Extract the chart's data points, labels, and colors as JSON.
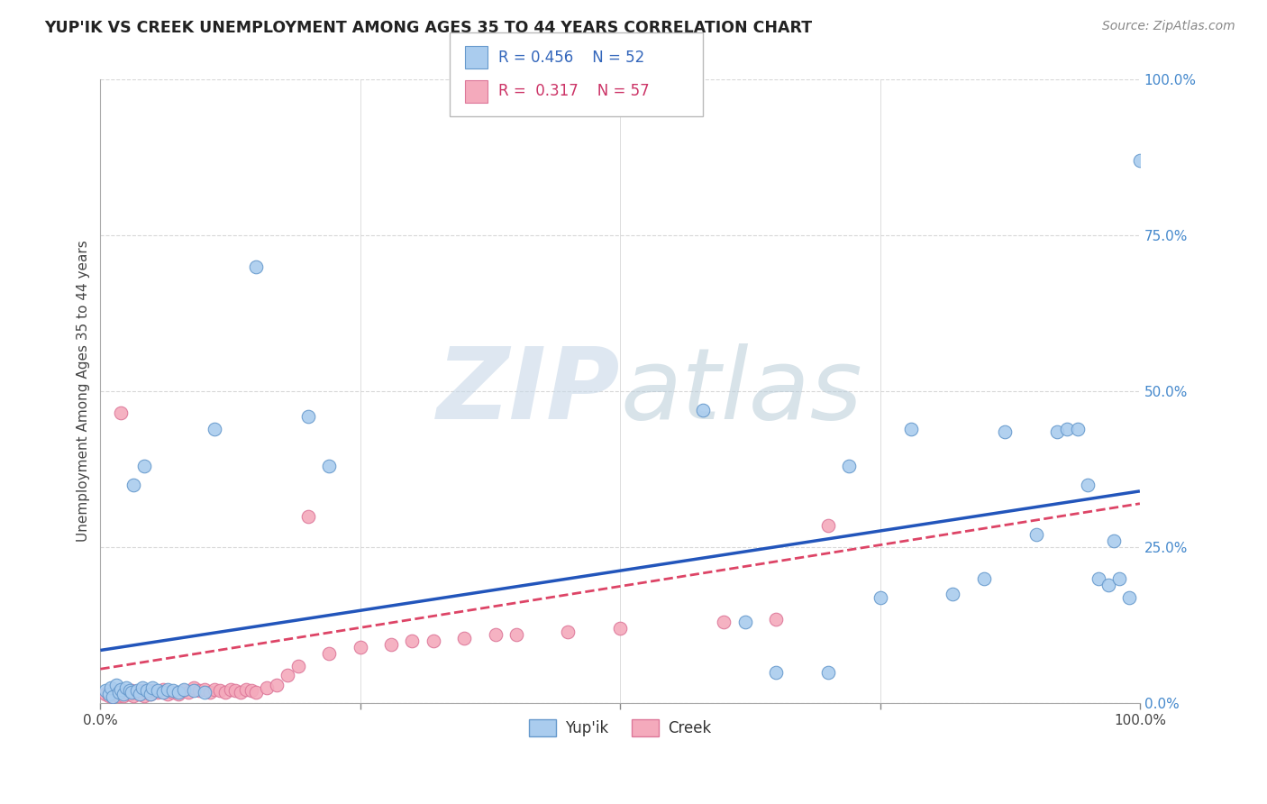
{
  "title": "YUP'IK VS CREEK UNEMPLOYMENT AMONG AGES 35 TO 44 YEARS CORRELATION CHART",
  "source": "Source: ZipAtlas.com",
  "ylabel": "Unemployment Among Ages 35 to 44 years",
  "xlim": [
    0,
    1
  ],
  "ylim": [
    0,
    1
  ],
  "ytick_labels": [
    "0.0%",
    "25.0%",
    "50.0%",
    "75.0%",
    "100.0%"
  ],
  "ytick_positions": [
    0.0,
    0.25,
    0.5,
    0.75,
    1.0
  ],
  "grid_color": "#d8d8d8",
  "background_color": "#ffffff",
  "yupik_color": "#aaccee",
  "creek_color": "#f4aabc",
  "yupik_edge": "#6699cc",
  "creek_edge": "#dd7799",
  "yupik_R": "0.456",
  "yupik_N": "52",
  "creek_R": "0.317",
  "creek_N": "57",
  "yupik_line_color": "#2255bb",
  "creek_line_color": "#dd4466",
  "yupik_scatter_x": [
    0.005,
    0.008,
    0.01,
    0.012,
    0.015,
    0.018,
    0.02,
    0.022,
    0.025,
    0.028,
    0.03,
    0.032,
    0.035,
    0.038,
    0.04,
    0.042,
    0.045,
    0.048,
    0.05,
    0.055,
    0.06,
    0.065,
    0.07,
    0.075,
    0.08,
    0.09,
    0.1,
    0.11,
    0.15,
    0.2,
    0.22,
    0.58,
    0.62,
    0.65,
    0.7,
    0.72,
    0.75,
    0.78,
    0.82,
    0.85,
    0.87,
    0.9,
    0.92,
    0.93,
    0.94,
    0.95,
    0.96,
    0.97,
    0.975,
    0.98,
    0.99,
    1.0
  ],
  "yupik_scatter_y": [
    0.02,
    0.015,
    0.025,
    0.01,
    0.03,
    0.018,
    0.022,
    0.015,
    0.025,
    0.02,
    0.018,
    0.35,
    0.02,
    0.015,
    0.025,
    0.38,
    0.02,
    0.015,
    0.025,
    0.02,
    0.018,
    0.022,
    0.02,
    0.018,
    0.022,
    0.02,
    0.018,
    0.44,
    0.7,
    0.46,
    0.38,
    0.47,
    0.13,
    0.05,
    0.05,
    0.38,
    0.17,
    0.44,
    0.175,
    0.2,
    0.435,
    0.27,
    0.435,
    0.44,
    0.44,
    0.35,
    0.2,
    0.19,
    0.26,
    0.2,
    0.17,
    0.87
  ],
  "creek_scatter_x": [
    0.005,
    0.008,
    0.01,
    0.012,
    0.015,
    0.018,
    0.02,
    0.022,
    0.025,
    0.028,
    0.03,
    0.032,
    0.035,
    0.038,
    0.04,
    0.042,
    0.045,
    0.048,
    0.05,
    0.055,
    0.06,
    0.065,
    0.07,
    0.075,
    0.08,
    0.085,
    0.09,
    0.095,
    0.1,
    0.105,
    0.11,
    0.115,
    0.12,
    0.125,
    0.13,
    0.135,
    0.14,
    0.145,
    0.15,
    0.16,
    0.17,
    0.18,
    0.19,
    0.2,
    0.22,
    0.25,
    0.28,
    0.3,
    0.32,
    0.35,
    0.38,
    0.4,
    0.45,
    0.5,
    0.6,
    0.65,
    0.7
  ],
  "creek_scatter_y": [
    0.015,
    0.012,
    0.02,
    0.01,
    0.015,
    0.012,
    0.465,
    0.012,
    0.018,
    0.015,
    0.02,
    0.012,
    0.018,
    0.015,
    0.02,
    0.012,
    0.018,
    0.015,
    0.02,
    0.018,
    0.022,
    0.015,
    0.018,
    0.015,
    0.02,
    0.018,
    0.025,
    0.02,
    0.022,
    0.018,
    0.022,
    0.02,
    0.018,
    0.022,
    0.02,
    0.018,
    0.022,
    0.02,
    0.018,
    0.025,
    0.03,
    0.045,
    0.06,
    0.3,
    0.08,
    0.09,
    0.095,
    0.1,
    0.1,
    0.105,
    0.11,
    0.11,
    0.115,
    0.12,
    0.13,
    0.135,
    0.285
  ],
  "yupik_trend_x0": 0.0,
  "yupik_trend_y0": 0.085,
  "yupik_trend_x1": 1.0,
  "yupik_trend_y1": 0.34,
  "creek_trend_x0": 0.0,
  "creek_trend_y0": 0.055,
  "creek_trend_x1": 1.0,
  "creek_trend_y1": 0.32
}
